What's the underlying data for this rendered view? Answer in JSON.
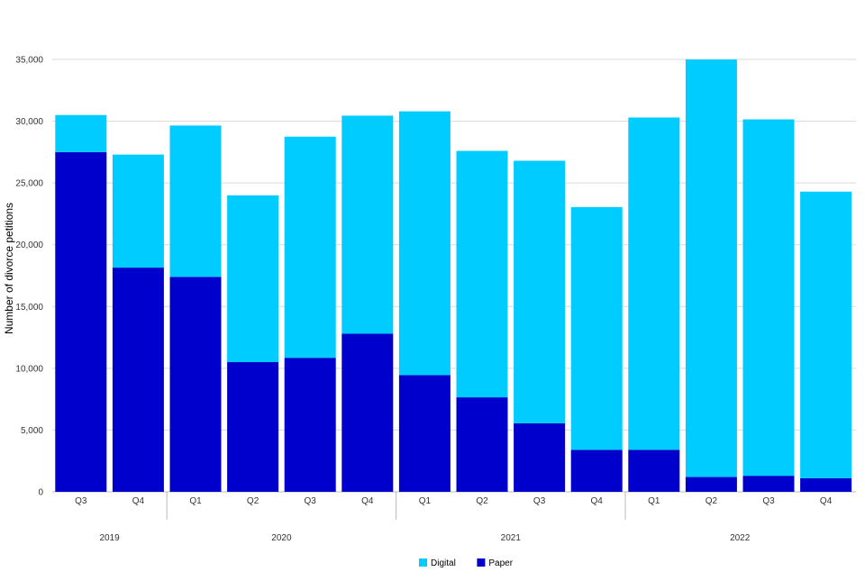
{
  "chart_data": {
    "type": "bar",
    "stacked": true,
    "title": "",
    "xlabel": "",
    "ylabel": "Number of divorce petitions",
    "ylim": [
      0,
      35000
    ],
    "yticks": [
      0,
      5000,
      10000,
      15000,
      20000,
      25000,
      30000,
      35000
    ],
    "ytick_labels": [
      "0",
      "5,000",
      "10,000",
      "15,000",
      "20,000",
      "25,000",
      "30,000",
      "35,000"
    ],
    "grid": true,
    "legend_position": "bottom",
    "categories": [
      "Q3",
      "Q4",
      "Q1",
      "Q2",
      "Q3",
      "Q4",
      "Q1",
      "Q2",
      "Q3",
      "Q4",
      "Q1",
      "Q2",
      "Q3",
      "Q4"
    ],
    "years": [
      {
        "label": "2019",
        "count": 2
      },
      {
        "label": "2020",
        "count": 4
      },
      {
        "label": "2021",
        "count": 4
      },
      {
        "label": "2022",
        "count": 4
      }
    ],
    "series": [
      {
        "name": "Paper",
        "color": "#0000cc",
        "values": [
          27500,
          18150,
          17400,
          10500,
          10850,
          12800,
          9450,
          7650,
          5550,
          3400,
          3400,
          1200,
          1300,
          1100
        ]
      },
      {
        "name": "Digital",
        "color": "#00ccff",
        "values": [
          3000,
          9150,
          12250,
          13500,
          17900,
          17650,
          21350,
          19950,
          21250,
          19650,
          26900,
          33800,
          28850,
          23200
        ]
      }
    ],
    "legend_order": [
      "Digital",
      "Paper"
    ]
  }
}
